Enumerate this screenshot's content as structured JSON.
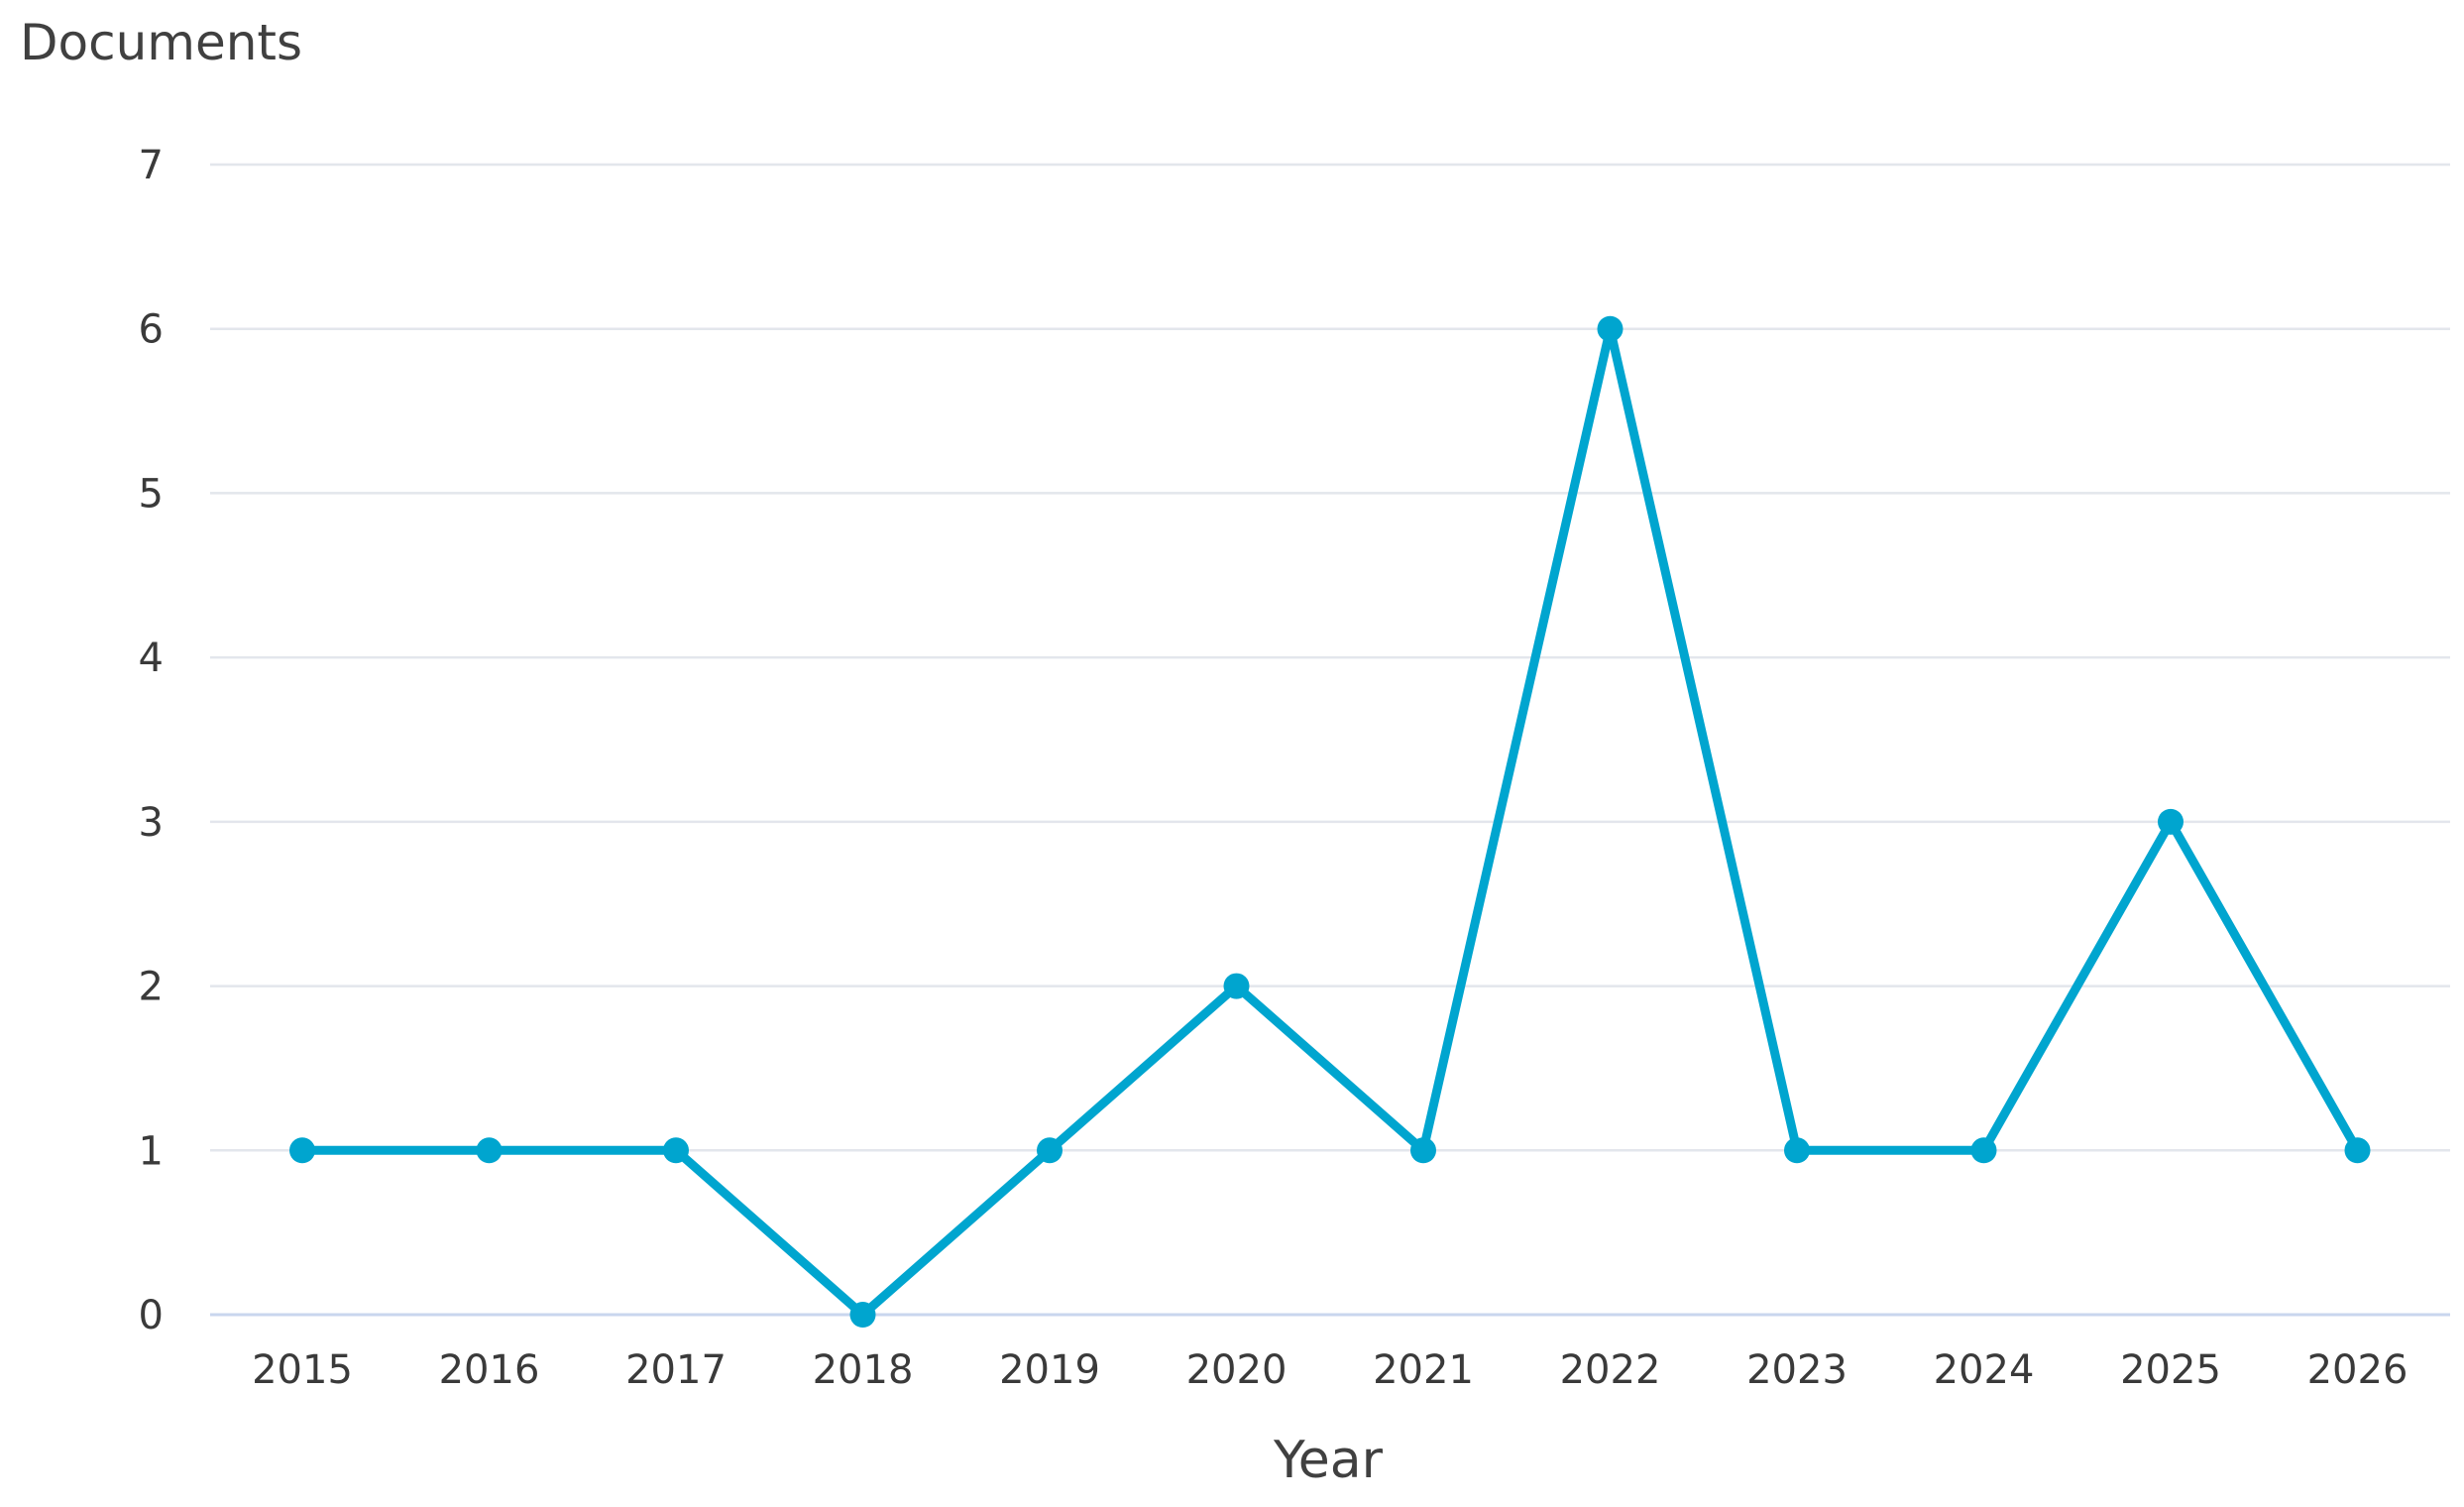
{
  "chart_data": {
    "type": "line",
    "ylabel": "Documents",
    "xlabel": "Year",
    "categories": [
      "2015",
      "2016",
      "2017",
      "2018",
      "2019",
      "2020",
      "2021",
      "2022",
      "2023",
      "2024",
      "2025",
      "2026"
    ],
    "series": [
      {
        "values": [
          1,
          1,
          1,
          0,
          1,
          2,
          1,
          6,
          1,
          1,
          3,
          1
        ],
        "color": "#00a5cf"
      }
    ],
    "ylim": [
      0,
      7
    ],
    "yticks": [
      "0",
      "1",
      "2",
      "3",
      "4",
      "5",
      "6",
      "7"
    ],
    "grid": true,
    "legend": "none"
  }
}
